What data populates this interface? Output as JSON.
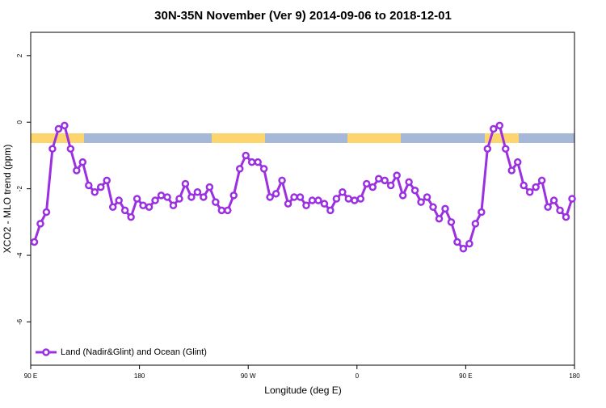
{
  "chart_data": {
    "type": "line",
    "title": "30N-35N November (Ver 9)   2014-09-06 to 2018-12-01",
    "x_label": "Longitude (deg E)",
    "y_label": "XCO2 - MLO trend (ppm)",
    "xlim": [
      90,
      540
    ],
    "xticks": [
      {
        "value": 90,
        "label": "90 E"
      },
      180,
      {
        "value": 270,
        "label": "90 W"
      },
      {
        "value": 360,
        "label": "0"
      },
      {
        "value": 450,
        "label": "90 E"
      },
      {
        "value": 540,
        "label": "180"
      }
    ],
    "ylim": [
      -7.3,
      2.7
    ],
    "yticks": [
      2,
      0,
      -2,
      -4,
      -6
    ],
    "legend": "lower left",
    "x": [
      93,
      98,
      103,
      108,
      113,
      118,
      123,
      128,
      133,
      138,
      143,
      148,
      153,
      158,
      163,
      168,
      173,
      178,
      183,
      188,
      193,
      198,
      203,
      208,
      213,
      218,
      223,
      228,
      233,
      238,
      243,
      248,
      253,
      258,
      263,
      268,
      273,
      278,
      283,
      288,
      293,
      298,
      303,
      308,
      313,
      318,
      323,
      328,
      333,
      338,
      343,
      348,
      353,
      358,
      363,
      368,
      373,
      378,
      383,
      388,
      393,
      398,
      403,
      408,
      413,
      418,
      423,
      428,
      433,
      438,
      443,
      448,
      453,
      458,
      463,
      468,
      473,
      478,
      483,
      488,
      493,
      498,
      503,
      508,
      513,
      518,
      523,
      528,
      533,
      538
    ],
    "series": [
      {
        "name": "Land (Nadir&Glint) and Ocean (Glint)",
        "color": "#9b30e0",
        "values": [
          -3.6,
          -3.05,
          -2.7,
          -0.8,
          -0.2,
          -0.1,
          -0.8,
          -1.45,
          -1.2,
          -1.9,
          -2.1,
          -1.95,
          -1.75,
          -2.55,
          -2.35,
          -2.65,
          -2.85,
          -2.3,
          -2.5,
          -2.55,
          -2.35,
          -2.2,
          -2.25,
          -2.5,
          -2.3,
          -1.85,
          -2.25,
          -2.1,
          -2.25,
          -1.95,
          -2.4,
          -2.65,
          -2.65,
          -2.2,
          -1.4,
          -1.0,
          -1.2,
          -1.2,
          -1.4,
          -2.25,
          -2.15,
          -1.75,
          -2.45,
          -2.25,
          -2.25,
          -2.5,
          -2.35,
          -2.35,
          -2.45,
          -2.65,
          -2.3,
          -2.1,
          -2.3,
          -2.35,
          -2.3,
          -1.85,
          -1.95,
          -1.7,
          -1.75,
          -1.9,
          -1.6,
          -2.2,
          -1.8,
          -2.05,
          -2.4,
          -2.25,
          -2.55,
          -2.9,
          -2.6,
          -3.0,
          -3.6,
          -3.8,
          -3.65,
          -3.05,
          -2.7,
          -0.8,
          -0.2,
          -0.1,
          -0.8,
          -1.45,
          -1.2,
          -1.9,
          -2.1,
          -1.95,
          -1.75,
          -2.55,
          -2.35,
          -2.65,
          -2.85,
          -2.3
        ]
      }
    ]
  }
}
